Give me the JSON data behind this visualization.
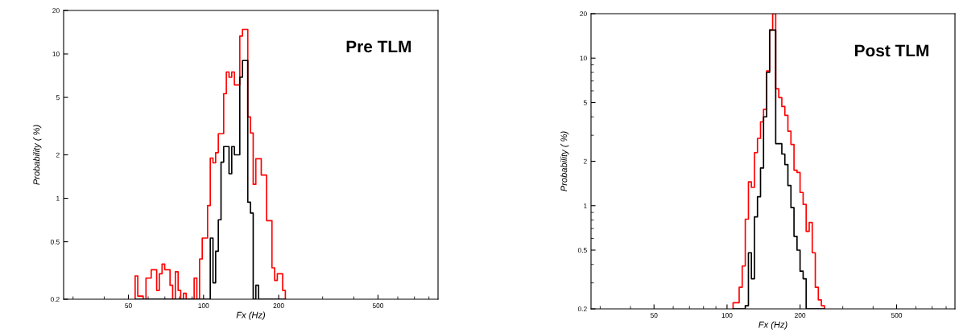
{
  "chart_data": [
    {
      "type": "histogram",
      "xlabel": "Fx (Hz)",
      "ylabel": "Probability ( %)",
      "annotations": [
        "Pre TLM"
      ],
      "log": "xy",
      "xlim": [
        27.5,
        870
      ],
      "ylim": [
        0.2,
        20
      ],
      "xticks": [
        {
          "value": 30,
          "label": null
        },
        {
          "value": 40,
          "label": null
        },
        50,
        {
          "value": 60,
          "label": null
        },
        {
          "value": 70,
          "label": null
        },
        {
          "value": 80,
          "label": null
        },
        {
          "value": 90,
          "label": null
        },
        100,
        200,
        {
          "value": 300,
          "label": null
        },
        {
          "value": 400,
          "label": null
        },
        500,
        {
          "value": 600,
          "label": null
        },
        {
          "value": 700,
          "label": null
        },
        {
          "value": 800,
          "label": null
        }
      ],
      "yticks": [
        0.2,
        0.5,
        1,
        2,
        5,
        10,
        20
      ],
      "bins": [
        53.2,
        54.5,
        55.9,
        57.3,
        58.8,
        60.2,
        61.7,
        63.3,
        64.9,
        66.5,
        68.2,
        69.9,
        71.6,
        73.4,
        75.2,
        77.1,
        79.1,
        81.0,
        83.1,
        85.2,
        87.3,
        89.5,
        91.7,
        94.0,
        96.4,
        98.8,
        101.3,
        103.8,
        106.4,
        109.1,
        111.8,
        114.6,
        117.5,
        120.4,
        123.4,
        126.5,
        129.7,
        132.9,
        136.3,
        139.7,
        143.2,
        146.8,
        150.4,
        154.2,
        158.1,
        162.0,
        166.1,
        170.3,
        174.5,
        178.9,
        183.4,
        188.0,
        192.7,
        197.5,
        202.4,
        207.5,
        212.7
      ],
      "series": [
        {
          "color": "#ff0000",
          "values": [
            0.29,
            0.21,
            0.21,
            null,
            0.28,
            0.28,
            0.32,
            0.32,
            0.23,
            0.3,
            0.35,
            0.32,
            0.32,
            0.25,
            null,
            0.31,
            0.23,
            null,
            0.22,
            null,
            null,
            null,
            0.28,
            null,
            0.38,
            0.53,
            0.53,
            0.89,
            1.9,
            1.76,
            2.07,
            2.8,
            2.8,
            5.3,
            7.5,
            6.9,
            7.5,
            6.1,
            6.1,
            13.3,
            14.8,
            14.8,
            3.66,
            2.83,
            1.25,
            1.88,
            1.88,
            1.45,
            1.45,
            0.7,
            0.7,
            0.33,
            0.27,
            0.3,
            0.3,
            0.23
          ]
        },
        {
          "color": "#000000",
          "values": [
            null,
            null,
            null,
            null,
            null,
            null,
            null,
            null,
            null,
            null,
            null,
            null,
            null,
            null,
            null,
            null,
            null,
            null,
            null,
            null,
            null,
            null,
            null,
            null,
            null,
            null,
            null,
            null,
            0.53,
            0.26,
            0.43,
            0.71,
            1.78,
            2.28,
            2.28,
            1.48,
            2.28,
            2.0,
            2.0,
            6.9,
            9.0,
            9.0,
            0.94,
            0.79,
            null,
            0.25,
            null,
            null,
            null,
            null,
            null,
            null,
            null,
            null,
            null,
            null
          ]
        }
      ]
    },
    {
      "type": "histogram",
      "xlabel": "Fx (Hz)",
      "ylabel": "Probability ( %)",
      "annotations": [
        "Post TLM"
      ],
      "log": "xy",
      "xlim": [
        27.5,
        870
      ],
      "ylim": [
        0.2,
        20
      ],
      "xticks": [
        {
          "value": 30,
          "label": null
        },
        {
          "value": 40,
          "label": null
        },
        50,
        {
          "value": 60,
          "label": null
        },
        {
          "value": 70,
          "label": null
        },
        {
          "value": 80,
          "label": null
        },
        {
          "value": 90,
          "label": null
        },
        100,
        200,
        {
          "value": 300,
          "label": null
        },
        {
          "value": 400,
          "label": null
        },
        500,
        {
          "value": 600,
          "label": null
        },
        {
          "value": 700,
          "label": null
        },
        {
          "value": 800,
          "label": null
        }
      ],
      "yticks": [
        0.2,
        {
          "value": 0.3,
          "label": null
        },
        {
          "value": 0.4,
          "label": null
        },
        0.5,
        {
          "value": 0.6,
          "label": null
        },
        {
          "value": 0.7,
          "label": null
        },
        {
          "value": 0.8,
          "label": null
        },
        {
          "value": 0.9,
          "label": null
        },
        1,
        2,
        {
          "value": 3,
          "label": null
        },
        {
          "value": 4,
          "label": null
        },
        5,
        {
          "value": 6,
          "label": null
        },
        {
          "value": 7,
          "label": null
        },
        {
          "value": 8,
          "label": null
        },
        {
          "value": 9,
          "label": null
        },
        10,
        20
      ],
      "bins": [
        105.9,
        109.1,
        112.2,
        115.5,
        118.9,
        122.5,
        126.0,
        129.7,
        133.5,
        137.4,
        141.4,
        145.6,
        149.8,
        154.2,
        158.7,
        163.4,
        168.2,
        173.1,
        178.2,
        183.4,
        188.8,
        194.3,
        200.0,
        205.9,
        211.9,
        218.1,
        224.5,
        231.1,
        237.8,
        244.8,
        252.0
      ],
      "series": [
        {
          "color": "#ff0000",
          "values": [
            0.22,
            0.22,
            0.28,
            0.39,
            0.81,
            1.45,
            1.33,
            2.29,
            2.86,
            3.7,
            4.5,
            8.2,
            15.5,
            20,
            6.2,
            5.4,
            4.7,
            4.1,
            3.2,
            2.6,
            1.74,
            1.68,
            1.23,
            1.02,
            0.67,
            0.77,
            0.48,
            0.28,
            0.23,
            0.21
          ]
        },
        {
          "color": "#000000",
          "values": [
            null,
            null,
            null,
            null,
            0.21,
            0.48,
            0.32,
            0.84,
            1.15,
            1.8,
            4.0,
            8.0,
            15.5,
            15.5,
            2.63,
            2.63,
            2.24,
            1.9,
            1.37,
            0.97,
            0.62,
            0.5,
            0.36,
            0.32,
            null,
            null,
            null,
            null,
            null,
            null
          ]
        }
      ]
    }
  ]
}
